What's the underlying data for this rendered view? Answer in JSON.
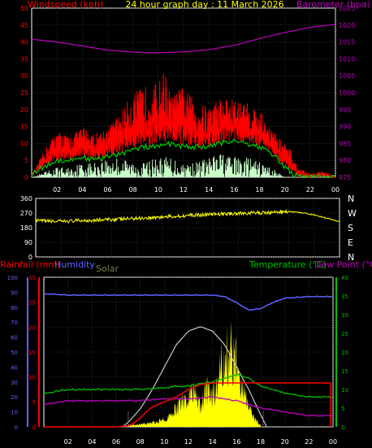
{
  "header": {
    "left_label": "Windspeed (kph)",
    "title": "24 hour graph day : 11 March 2026",
    "right_label": "Barometer (hpa)"
  },
  "colors": {
    "wind": "#ff0000",
    "gust": "#ff0000",
    "wind_avg": "#00d000",
    "wind_min": "#c8ffc8",
    "barometer": "#c000c0",
    "direction": "#ffff00",
    "rain": "#ff0000",
    "humidity": "#6060ff",
    "solar": "#c8c8c8",
    "solar_fill": "#ffff00",
    "temperature": "#00c000",
    "dewpoint": "#c000c0",
    "grid": "#505050",
    "axis": "#ffffff"
  },
  "chart_data": [
    {
      "type": "line",
      "name": "wind-barometer",
      "x_ticks": [
        "02",
        "04",
        "06",
        "08",
        "10",
        "12",
        "14",
        "16",
        "18",
        "20",
        "22",
        "00"
      ],
      "xlim": [
        0,
        24
      ],
      "ylim_left": [
        0,
        50
      ],
      "y_ticks_left": [
        0,
        5,
        10,
        15,
        20,
        25,
        30,
        35,
        40,
        45,
        50
      ],
      "ylim_right": [
        975,
        1025
      ],
      "y_ticks_right": [
        975,
        980,
        985,
        990,
        995,
        1000,
        1005,
        1010,
        1015,
        1020,
        1025
      ],
      "barometer": {
        "x": [
          0,
          2,
          4,
          6,
          8,
          9,
          10,
          12,
          14,
          16,
          18,
          20,
          22,
          23,
          24
        ],
        "y": [
          1015.8,
          1015.0,
          1013.8,
          1012.6,
          1012.0,
          1011.8,
          1011.8,
          1012.1,
          1012.7,
          1014.0,
          1016.0,
          1017.8,
          1019.3,
          1019.8,
          1020.2
        ]
      },
      "wind_peak": {
        "x": [
          0,
          1,
          2,
          3,
          4,
          5,
          6,
          7,
          8,
          9,
          10,
          10.5,
          11,
          12,
          13,
          14,
          15,
          16,
          17,
          18,
          19,
          20,
          20.5,
          21,
          22,
          23,
          24
        ],
        "y": [
          0,
          8,
          14,
          12,
          15,
          13,
          15,
          19,
          25,
          27,
          28,
          32,
          24,
          27,
          22,
          21,
          24,
          23,
          22,
          20,
          14,
          10,
          8,
          3,
          1,
          2,
          0
        ]
      },
      "wind_avg": {
        "x": [
          0,
          1,
          2,
          3,
          4,
          5,
          6,
          7,
          8,
          9,
          10,
          11,
          12,
          13,
          14,
          15,
          16,
          17,
          18,
          19,
          20,
          21,
          22,
          23,
          24
        ],
        "y": [
          1,
          3,
          5,
          5,
          6,
          5,
          6,
          7,
          8,
          9,
          9,
          10,
          9,
          9,
          9,
          10,
          11,
          10,
          9,
          7,
          3,
          0,
          0,
          0,
          0
        ]
      },
      "wind_min": {
        "x": [
          0,
          1,
          2,
          3,
          4,
          5,
          6,
          7,
          8,
          9,
          10,
          11,
          12,
          13,
          14,
          15,
          16,
          17,
          18,
          19,
          20,
          21,
          22,
          23,
          24
        ],
        "y": [
          0,
          1,
          2,
          2,
          3,
          3,
          4,
          4,
          3,
          3,
          4,
          4,
          3,
          3,
          4,
          5,
          4,
          4,
          3,
          2,
          0,
          0,
          0,
          0,
          0
        ]
      }
    },
    {
      "type": "line",
      "name": "wind-direction",
      "xlim": [
        0,
        24
      ],
      "ylim": [
        0,
        360
      ],
      "y_ticks": [
        0,
        90,
        180,
        270,
        360
      ],
      "compass_labels": [
        "N",
        "W",
        "S",
        "E",
        "N"
      ],
      "direction": {
        "x": [
          0,
          2,
          4,
          6,
          8,
          10,
          12,
          14,
          16,
          18,
          20,
          21,
          22,
          23,
          24
        ],
        "y": [
          222,
          218,
          225,
          230,
          238,
          245,
          255,
          262,
          268,
          272,
          278,
          272,
          258,
          238,
          218
        ]
      }
    },
    {
      "type": "line",
      "name": "rain-humidity-temperature",
      "labels": {
        "rainfall": "Rainfall (mm)",
        "humidity": "Humidity",
        "solar": "Solar",
        "temperature": "Temperature (°C)",
        "dewpoint": "Dew Point (°C)"
      },
      "x_ticks": [
        "02",
        "04",
        "06",
        "08",
        "10",
        "12",
        "14",
        "16",
        "18",
        "20",
        "22",
        "00"
      ],
      "xlim": [
        0,
        24
      ],
      "ylim_humidity": [
        0,
        100
      ],
      "y_ticks_humidity": [
        0,
        10,
        20,
        30,
        40,
        50,
        60,
        70,
        80,
        90,
        100
      ],
      "ylim_rain": [
        0,
        30
      ],
      "y_ticks_rain": [
        0,
        5,
        10,
        15,
        20,
        25,
        30
      ],
      "ylim_temp": [
        0,
        40
      ],
      "y_ticks_temp": [
        0,
        5,
        10,
        15,
        20,
        25,
        30,
        35,
        40
      ],
      "humidity": {
        "x": [
          0,
          2,
          4,
          6,
          8,
          10,
          12,
          14,
          15,
          16,
          17,
          18,
          19,
          20,
          22,
          24
        ],
        "y": [
          89,
          88,
          88,
          88,
          88,
          88,
          88,
          88,
          87,
          83,
          78,
          79,
          83,
          86,
          87,
          87
        ]
      },
      "rain": {
        "x": [
          0,
          6,
          7,
          7.5,
          8,
          8.5,
          9,
          10,
          11,
          12,
          13,
          14,
          18,
          20,
          22,
          23.8
        ],
        "y": [
          0,
          0,
          0.2,
          0.8,
          1.8,
          3.0,
          4.0,
          5.0,
          6.0,
          7.5,
          8.5,
          8.8,
          8.8,
          8.8,
          8.8,
          8.8
        ]
      },
      "temperature": {
        "x": [
          0,
          2,
          4,
          6,
          8,
          10,
          12,
          14,
          15,
          16,
          17,
          18,
          20,
          22,
          24
        ],
        "y": [
          9,
          10,
          10,
          10,
          10,
          10.5,
          11,
          12,
          13,
          14,
          13,
          11,
          9,
          8,
          8
        ]
      },
      "dewpoint": {
        "x": [
          0,
          2,
          4,
          6,
          8,
          10,
          12,
          14,
          16,
          18,
          20,
          22,
          24
        ],
        "y": [
          6,
          7,
          7,
          7,
          7,
          7.5,
          7.5,
          8,
          7,
          5,
          4,
          3,
          3
        ]
      },
      "solar_envelope": {
        "x": [
          6.5,
          7,
          8,
          9,
          10,
          11,
          12,
          13,
          14,
          15,
          16,
          17,
          18,
          18.5
        ],
        "y": [
          0,
          3,
          12,
          25,
          40,
          55,
          64,
          67,
          64,
          55,
          40,
          25,
          8,
          0
        ]
      },
      "solar": {
        "x": [
          7,
          8,
          9,
          10,
          11,
          12,
          12.5,
          13,
          13.5,
          14,
          14.5,
          15,
          15.5,
          16,
          16.5,
          17,
          17.5,
          18
        ],
        "y": [
          1,
          2,
          3,
          6,
          14,
          24,
          28,
          15,
          30,
          22,
          45,
          55,
          62,
          48,
          30,
          15,
          6,
          1
        ]
      }
    }
  ]
}
